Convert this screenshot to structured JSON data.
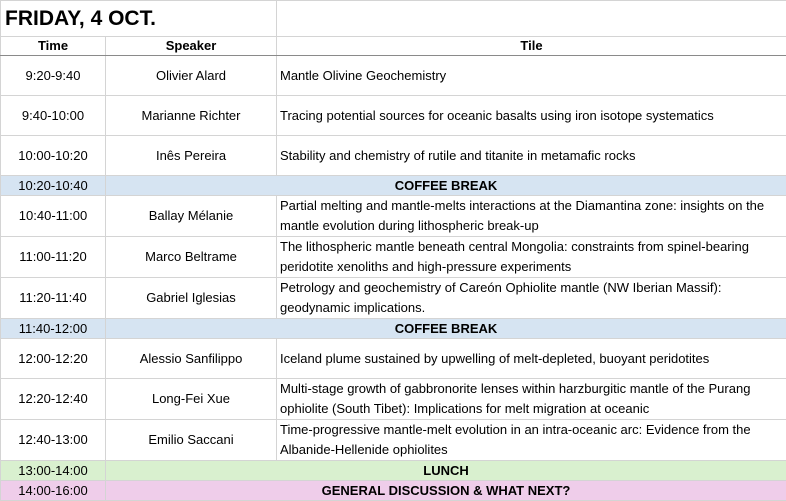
{
  "day_title": "FRIDAY, 4 OCT.",
  "headers": {
    "time": "Time",
    "speaker": "Speaker",
    "title": "Tile"
  },
  "colors": {
    "coffee": "#d6e4f2",
    "lunch": "#d9f0cf",
    "discussion": "#efcdea"
  },
  "rows": [
    {
      "type": "talk",
      "time": "9:20-9:40",
      "speaker": "Olivier Alard",
      "title": "Mantle Olivine Geochemistry"
    },
    {
      "type": "talk",
      "time": "9:40-10:00",
      "speaker": "Marianne Richter",
      "title": "Tracing potential sources for oceanic basalts using iron isotope systematics"
    },
    {
      "type": "talk",
      "time": "10:00-10:20",
      "speaker": "Inês Pereira",
      "title": "Stability and chemistry of rutile and titanite in metamafic rocks"
    },
    {
      "type": "coffee",
      "time": "10:20-10:40",
      "label": "COFFEE BREAK"
    },
    {
      "type": "talk",
      "time": "10:40-11:00",
      "speaker": "Ballay Mélanie",
      "title": "Partial melting and mantle-melts interactions at the Diamantina zone: insights on the mantle evolution during lithospheric break-up"
    },
    {
      "type": "talk",
      "time": "11:00-11:20",
      "speaker": "Marco Beltrame",
      "title": "The lithospheric mantle beneath central Mongolia: constraints from spinel-bearing peridotite xenoliths and high-pressure experiments"
    },
    {
      "type": "talk",
      "time": "11:20-11:40",
      "speaker": "Gabriel Iglesias",
      "title": "Petrology and geochemistry of Careón Ophiolite mantle (NW Iberian Massif): geodynamic implications."
    },
    {
      "type": "coffee",
      "time": "11:40-12:00",
      "label": "COFFEE BREAK"
    },
    {
      "type": "talk",
      "time": "12:00-12:20",
      "speaker": "Alessio Sanfilippo",
      "title": "Iceland plume sustained by upwelling of melt-depleted, buoyant peridotites"
    },
    {
      "type": "talk",
      "time": "12:20-12:40",
      "speaker": "Long-Fei Xue",
      "title": "Multi-stage growth of gabbronorite lenses within harzburgitic mantle of the Purang ophiolite (South Tibet): Implications for melt migration at oceanic"
    },
    {
      "type": "talk",
      "time": "12:40-13:00",
      "speaker": "Emilio Saccani",
      "title": "Time-progressive mantle-melt evolution in an intra-oceanic arc: Evidence from the Albanide-Hellenide ophiolites"
    },
    {
      "type": "lunch",
      "time": "13:00-14:00",
      "label": "LUNCH"
    },
    {
      "type": "discussion",
      "time": "14:00-16:00",
      "label": "GENERAL DISCUSSION & WHAT NEXT?"
    }
  ]
}
